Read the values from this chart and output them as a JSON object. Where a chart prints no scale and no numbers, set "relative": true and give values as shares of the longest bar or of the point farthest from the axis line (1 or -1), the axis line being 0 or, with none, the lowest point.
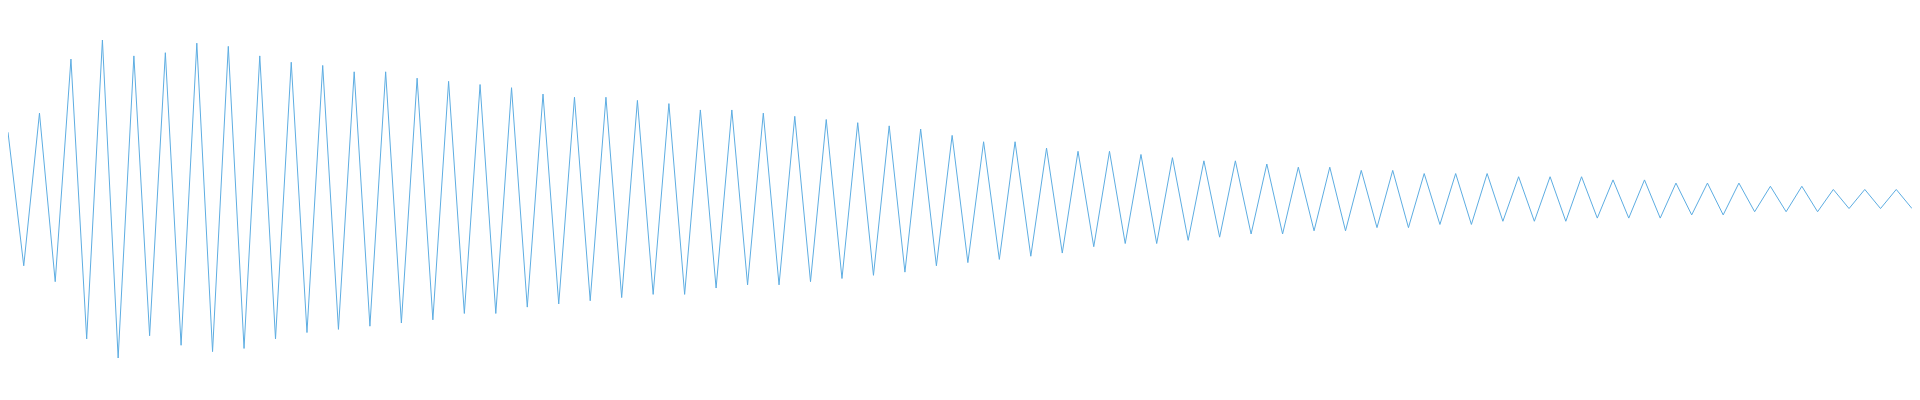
{
  "chart_data": {
    "type": "line",
    "relative": true,
    "color": "#5dade2",
    "categories": [
      null,
      null,
      null,
      null,
      null,
      null,
      null,
      null,
      null,
      null,
      null,
      null,
      null,
      null,
      null,
      null,
      null,
      null,
      null,
      null,
      null,
      null,
      null,
      null,
      null,
      null,
      null,
      null,
      null,
      null,
      null,
      null,
      null,
      null,
      null,
      null,
      null,
      null,
      null,
      null,
      null,
      null,
      null,
      null,
      null,
      null,
      null,
      null,
      null,
      null,
      null,
      null,
      null,
      null,
      null,
      null,
      null,
      null,
      null,
      null,
      null,
      null,
      null,
      null,
      null,
      null,
      null,
      null,
      null,
      null,
      null,
      null,
      null,
      null,
      null,
      null,
      null,
      null,
      null,
      null,
      null,
      null,
      null,
      null,
      null,
      null,
      null,
      null,
      null,
      null,
      null,
      null,
      null,
      null,
      null,
      null,
      null,
      null,
      null,
      null,
      null,
      null,
      null,
      null,
      null,
      null,
      null,
      null,
      null,
      null,
      null,
      null,
      null,
      null,
      null,
      null,
      null,
      null,
      null,
      null,
      null,
      null
    ],
    "values": [
      0.71,
      0.29,
      0.77,
      0.24,
      0.94,
      0.06,
      1.0,
      0.0,
      0.95,
      0.07,
      0.96,
      0.04,
      0.99,
      0.02,
      0.98,
      0.03,
      0.95,
      0.06,
      0.93,
      0.08,
      0.92,
      0.09,
      0.9,
      0.1,
      0.9,
      0.11,
      0.88,
      0.12,
      0.87,
      0.14,
      0.86,
      0.14,
      0.85,
      0.16,
      0.83,
      0.17,
      0.82,
      0.18,
      0.82,
      0.19,
      0.81,
      0.2,
      0.8,
      0.2,
      0.78,
      0.22,
      0.78,
      0.23,
      0.77,
      0.23,
      0.76,
      0.24,
      0.75,
      0.25,
      0.74,
      0.26,
      0.73,
      0.27,
      0.72,
      0.29,
      0.7,
      0.3,
      0.68,
      0.31,
      0.68,
      0.32,
      0.66,
      0.33,
      0.65,
      0.35,
      0.65,
      0.36,
      0.64,
      0.36,
      0.63,
      0.37,
      0.62,
      0.38,
      0.62,
      0.39,
      0.61,
      0.39,
      0.6,
      0.4,
      0.6,
      0.4,
      0.59,
      0.41,
      0.59,
      0.41,
      0.58,
      0.42,
      0.58,
      0.42,
      0.58,
      0.43,
      0.57,
      0.43,
      0.57,
      0.43,
      0.57,
      0.44,
      0.56,
      0.44,
      0.56,
      0.44,
      0.55,
      0.45,
      0.55,
      0.45,
      0.55,
      0.46,
      0.54,
      0.46,
      0.54,
      0.46,
      0.53,
      0.47,
      0.53,
      0.47,
      0.53,
      0.47
    ]
  }
}
